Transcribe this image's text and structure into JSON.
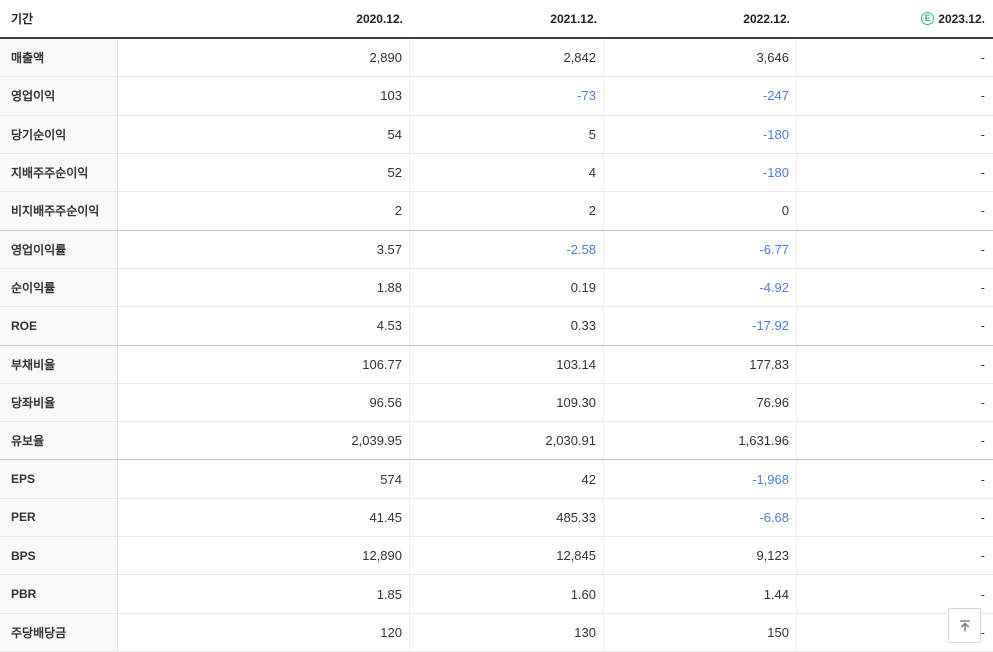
{
  "table": {
    "period_label": "기간",
    "columns": [
      "2020.12.",
      "2021.12.",
      "2022.12.",
      "2023.12."
    ],
    "estimate_icon_letter": "E",
    "estimate_column_index": 3,
    "rows": [
      {
        "label": "매출액",
        "values": [
          "2,890",
          "2,842",
          "3,646",
          "-"
        ],
        "group_end": false
      },
      {
        "label": "영업이익",
        "values": [
          "103",
          "-73",
          "-247",
          "-"
        ],
        "group_end": false
      },
      {
        "label": "당기순이익",
        "values": [
          "54",
          "5",
          "-180",
          "-"
        ],
        "group_end": false
      },
      {
        "label": "지배주주순이익",
        "values": [
          "52",
          "4",
          "-180",
          "-"
        ],
        "group_end": false
      },
      {
        "label": "비지배주주순이익",
        "values": [
          "2",
          "2",
          "0",
          "-"
        ],
        "group_end": true
      },
      {
        "label": "영업이익률",
        "values": [
          "3.57",
          "-2.58",
          "-6.77",
          "-"
        ],
        "group_end": false
      },
      {
        "label": "순이익률",
        "values": [
          "1.88",
          "0.19",
          "-4.92",
          "-"
        ],
        "group_end": false
      },
      {
        "label": "ROE",
        "values": [
          "4.53",
          "0.33",
          "-17.92",
          "-"
        ],
        "group_end": true
      },
      {
        "label": "부채비율",
        "values": [
          "106.77",
          "103.14",
          "177.83",
          "-"
        ],
        "group_end": false
      },
      {
        "label": "당좌비율",
        "values": [
          "96.56",
          "109.30",
          "76.96",
          "-"
        ],
        "group_end": false
      },
      {
        "label": "유보율",
        "values": [
          "2,039.95",
          "2,030.91",
          "1,631.96",
          "-"
        ],
        "group_end": true
      },
      {
        "label": "EPS",
        "values": [
          "574",
          "42",
          "-1,968",
          "-"
        ],
        "group_end": false
      },
      {
        "label": "PER",
        "values": [
          "41.45",
          "485.33",
          "-6.68",
          "-"
        ],
        "group_end": false
      },
      {
        "label": "BPS",
        "values": [
          "12,890",
          "12,845",
          "9,123",
          "-"
        ],
        "group_end": false
      },
      {
        "label": "PBR",
        "values": [
          "1.85",
          "1.60",
          "1.44",
          "-"
        ],
        "group_end": false
      },
      {
        "label": "주당배당금",
        "values": [
          "120",
          "130",
          "150",
          "-"
        ],
        "group_end": false
      }
    ]
  },
  "scroll_top_button": {
    "icon": "arrow-up-to-top-icon"
  },
  "colors": {
    "negative_value": "#4a7de0",
    "estimate_badge": "#35b97c",
    "header_border": "#3c3c3c"
  }
}
